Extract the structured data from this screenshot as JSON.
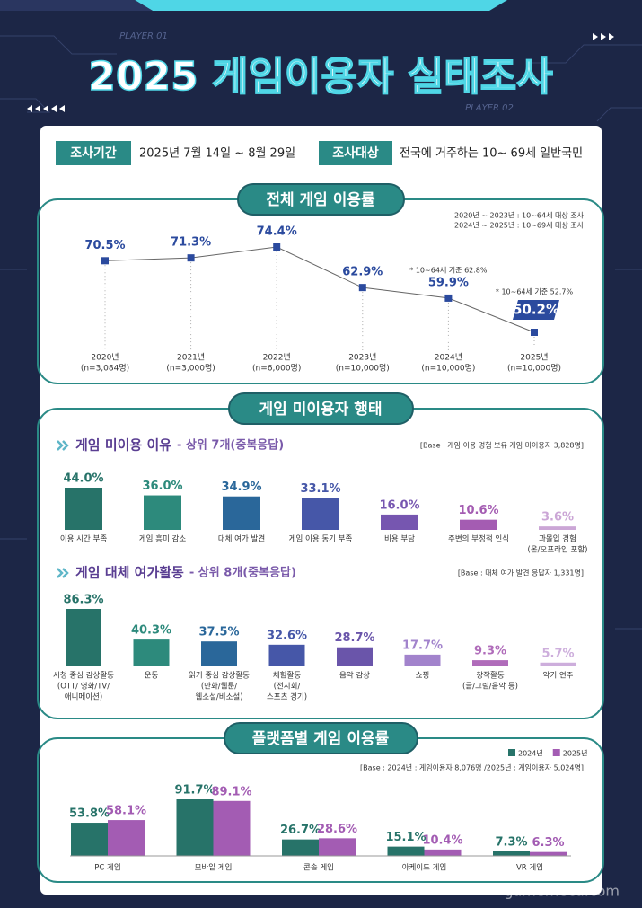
{
  "header": {
    "player_1": "PLAYER 01",
    "player_2": "PLAYER 02",
    "title": "2025 게임이용자 실태조사",
    "period_label": "조사기간",
    "period": "2025년 7월 14일 ~ 8월 29일",
    "target_label": "조사대상",
    "target": "전국에 거주하는 10~ 69세 일반국민",
    "section_2_title": "게임 미이용자 행태"
  },
  "chart_data": [
    {
      "type": "line",
      "title": "전체 게임 이용률",
      "notes": [
        "2020년 ~ 2023년 : 10~64세 대상 조사",
        "2024년 ~ 2025년 : 10~69세 대상 조사"
      ],
      "categories": [
        "2020년",
        "2021년",
        "2022년",
        "2023년",
        "2024년",
        "2025년"
      ],
      "sample_sizes": [
        "(n=3,084명)",
        "(n=3,000명)",
        "(n=6,000명)",
        "(n=10,000명)",
        "(n=10,000명)",
        "(n=10,000명)"
      ],
      "values": [
        70.5,
        71.3,
        74.4,
        62.9,
        59.9,
        50.2
      ],
      "value_labels": [
        "70.5%",
        "71.3%",
        "74.4%",
        "62.9%",
        "59.9%",
        "50.2%"
      ],
      "annotations": [
        null,
        null,
        null,
        null,
        "* 10~64세 기준 62.8%",
        "* 10~64세 기준 52.7%"
      ],
      "color": "#2b4a9e"
    },
    {
      "type": "bar",
      "subtitle": "게임 미이용 이유",
      "subtitle_note": "- 상위 7개(중복응답)",
      "base_note": "[Base : 게임 이용 경험 보유 게임 미이용자 3,828명]",
      "categories": [
        [
          "이용 시간 부족"
        ],
        [
          "게임 흥미 감소"
        ],
        [
          "대체 여가 발견"
        ],
        [
          "게임 이용 동기 부족"
        ],
        [
          "비용 부담"
        ],
        [
          "주변의 부정적 인식"
        ],
        [
          "과몰입 경험",
          "(온/오프라인 포함)"
        ]
      ],
      "values": [
        44.0,
        36.0,
        34.9,
        33.1,
        16.0,
        10.6,
        3.6
      ],
      "value_labels": [
        "44.0%",
        "36.0%",
        "34.9%",
        "33.1%",
        "16.0%",
        "10.6%",
        "3.6%"
      ],
      "colors": [
        "#277369",
        "#2d8a7c",
        "#2a679a",
        "#4657a8",
        "#7656b0",
        "#a45cb2",
        "#cba6d6"
      ]
    },
    {
      "type": "bar",
      "subtitle": "게임 대체 여가활동",
      "subtitle_note": "- 상위 8개(중복응답)",
      "base_note": "[Base : 대체 여가 발견 응답자 1,331명]",
      "categories": [
        [
          "시청 중심 감상활동",
          "(OTT/ 영화/TV/",
          "애니메이션)"
        ],
        [
          "운동"
        ],
        [
          "읽기 중심 감상활동",
          "(만화/웹툰/",
          "웹소설/비소설)"
        ],
        [
          "체험활동",
          "(전시회/",
          "스포츠 경기)"
        ],
        [
          "음악 감상"
        ],
        [
          "쇼핑"
        ],
        [
          "창작활동",
          "(글/그림/음악 등)"
        ],
        [
          "악기 연주"
        ]
      ],
      "values": [
        86.3,
        40.3,
        37.5,
        32.6,
        28.7,
        17.7,
        9.3,
        5.7
      ],
      "value_labels": [
        "86.3%",
        "40.3%",
        "37.5%",
        "32.6%",
        "28.7%",
        "17.7%",
        "9.3%",
        "5.7%"
      ],
      "colors": [
        "#277369",
        "#2d8a7c",
        "#2a679a",
        "#4657a8",
        "#6a55aa",
        "#a283cc",
        "#b06cba",
        "#cdaedc"
      ]
    },
    {
      "type": "grouped_bar",
      "title": "플랫폼별 게임 이용률",
      "base_note": "[Base : 2024년 : 게임이용자 8,076명 /2025년 : 게임이용자 5,024명]",
      "categories": [
        "PC 게임",
        "모바일 게임",
        "콘솔 게임",
        "아케이드 게임",
        "VR 게임"
      ],
      "series": [
        {
          "name": "2024년",
          "color": "#277369",
          "values": [
            53.8,
            91.7,
            26.7,
            15.1,
            7.3
          ],
          "value_labels": [
            "53.8%",
            "91.7%",
            "26.7%",
            "15.1%",
            "7.3%"
          ]
        },
        {
          "name": "2025년",
          "color": "#a35cb3",
          "values": [
            58.1,
            89.1,
            28.6,
            10.4,
            6.3
          ],
          "value_labels": [
            "58.1%",
            "89.1%",
            "28.6%",
            "10.4%",
            "6.3%"
          ]
        }
      ],
      "legend": "top-right"
    }
  ],
  "watermark": "gamemeca.com"
}
